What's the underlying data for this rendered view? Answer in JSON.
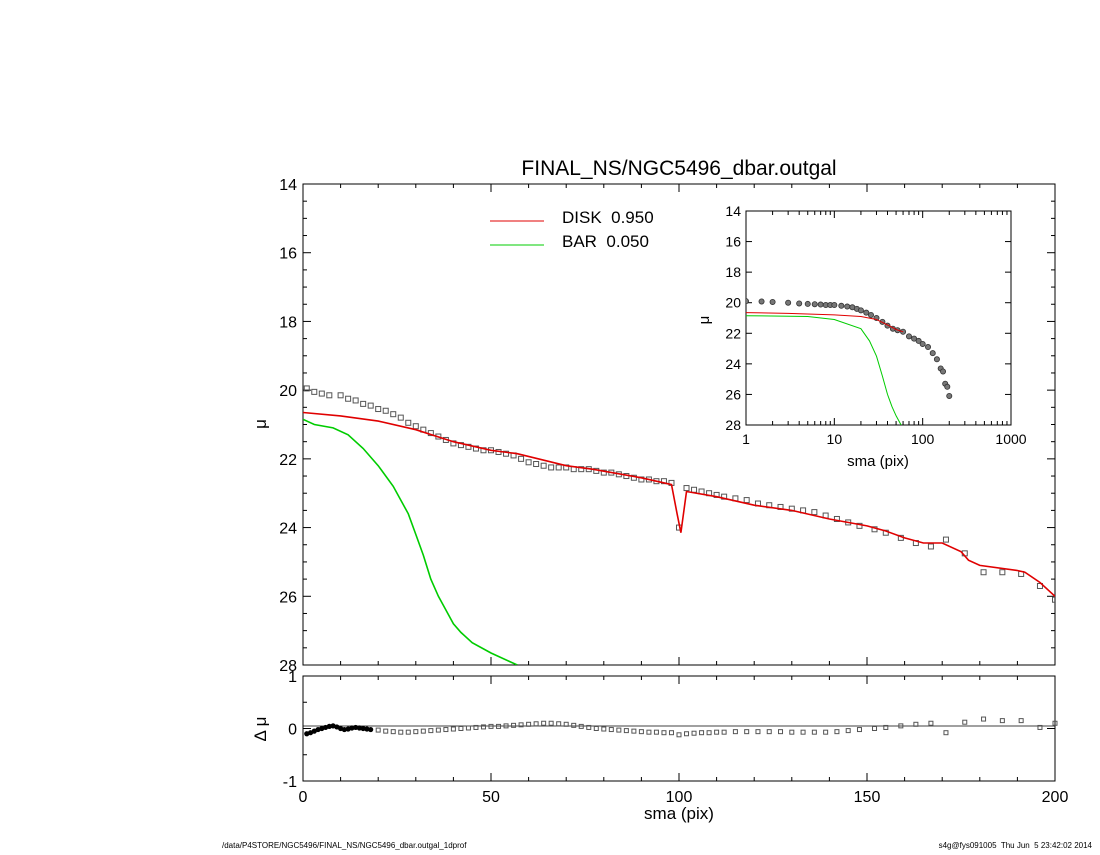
{
  "footer": {
    "left": "/data/P4STORE/NGC5496/FINAL_NS/NGC5496_dbar.outgal_1dprof",
    "right": "s4g@fys091005  Thu Jun  5 23:42:02 2014"
  },
  "colors": {
    "disk": "#e00000",
    "bar": "#00cc00",
    "data": "#555555",
    "axis": "#000000"
  },
  "chart_data": [
    {
      "id": "main",
      "type": "line",
      "title": "FINAL_NS/NGC5496_dbar.outgal",
      "xlabel": "",
      "ylabel": "μ",
      "xlim": [
        0,
        200
      ],
      "ylim": [
        28,
        14
      ],
      "yticks": [
        14,
        16,
        18,
        20,
        22,
        24,
        26,
        28
      ],
      "legend_position": "top-center",
      "series": [
        {
          "name": "DISK  0.950",
          "color": "#e00000",
          "x": [
            0,
            10,
            20,
            30,
            40,
            50,
            57,
            70,
            77,
            90,
            98,
            99.5,
            100.5,
            102,
            110,
            120,
            130,
            140,
            150,
            155,
            160,
            165,
            170,
            175,
            177,
            180,
            190,
            192,
            196,
            200
          ],
          "y": [
            20.65,
            20.75,
            20.9,
            21.15,
            21.5,
            21.75,
            21.85,
            22.2,
            22.3,
            22.55,
            22.75,
            23.6,
            24.15,
            22.95,
            23.1,
            23.35,
            23.5,
            23.75,
            23.95,
            24.1,
            24.3,
            24.45,
            24.45,
            24.7,
            24.95,
            25.1,
            25.25,
            25.3,
            25.6,
            26.0
          ]
        },
        {
          "name": "BAR  0.050",
          "color": "#00cc00",
          "x": [
            0,
            3,
            8,
            12,
            16,
            20,
            24,
            28,
            30,
            32,
            34,
            36,
            38,
            40,
            42,
            45,
            50,
            55,
            57
          ],
          "y": [
            20.85,
            21.0,
            21.1,
            21.3,
            21.7,
            22.2,
            22.8,
            23.6,
            24.2,
            24.8,
            25.5,
            26.0,
            26.4,
            26.8,
            27.05,
            27.35,
            27.65,
            27.9,
            28.0
          ]
        },
        {
          "name": "",
          "style": "squares",
          "color": "#555555",
          "x": [
            1,
            3,
            5,
            7,
            10,
            12,
            14,
            16,
            18,
            20,
            22,
            24,
            26,
            28,
            30,
            32,
            34,
            36,
            38,
            40,
            42,
            44,
            46,
            48,
            50,
            52,
            54,
            56,
            58,
            60,
            62,
            64,
            66,
            68,
            70,
            72,
            74,
            76,
            78,
            80,
            82,
            84,
            86,
            88,
            90,
            92,
            94,
            96,
            98,
            100,
            102,
            104,
            106,
            108,
            110,
            112,
            115,
            118,
            121,
            124,
            127,
            130,
            133,
            136,
            139,
            142,
            145,
            148,
            152,
            155,
            159,
            163,
            167,
            171,
            176,
            181,
            186,
            191,
            196,
            200
          ],
          "y": [
            19.95,
            20.05,
            20.1,
            20.15,
            20.15,
            20.25,
            20.3,
            20.4,
            20.45,
            20.55,
            20.6,
            20.7,
            20.8,
            20.95,
            21.05,
            21.15,
            21.25,
            21.35,
            21.45,
            21.55,
            21.6,
            21.65,
            21.7,
            21.75,
            21.75,
            21.8,
            21.85,
            21.9,
            22.0,
            22.1,
            22.15,
            22.2,
            22.25,
            22.25,
            22.25,
            22.3,
            22.3,
            22.3,
            22.35,
            22.4,
            22.4,
            22.45,
            22.5,
            22.55,
            22.6,
            22.6,
            22.65,
            22.65,
            22.7,
            24.0,
            22.85,
            22.9,
            22.95,
            23.0,
            23.05,
            23.1,
            23.15,
            23.2,
            23.3,
            23.35,
            23.4,
            23.45,
            23.5,
            23.55,
            23.65,
            23.75,
            23.85,
            23.95,
            24.05,
            24.15,
            24.3,
            24.45,
            24.55,
            24.35,
            24.75,
            25.3,
            25.3,
            25.35,
            25.7,
            26.1
          ]
        }
      ]
    },
    {
      "id": "residual",
      "type": "scatter",
      "xlabel": "sma (pix)",
      "ylabel": "Δ μ",
      "xlim": [
        0,
        200
      ],
      "ylim": [
        -1,
        1
      ],
      "xticks": [
        0,
        50,
        100,
        150,
        200
      ],
      "yticks": [
        -1,
        0,
        1
      ],
      "series": [
        {
          "name": "",
          "color": "#555555",
          "x": [
            1,
            2,
            3,
            4,
            5,
            6,
            7,
            8,
            9,
            10,
            11,
            12,
            13,
            14,
            15,
            16,
            17,
            18,
            20,
            22,
            24,
            26,
            28,
            30,
            32,
            34,
            36,
            38,
            40,
            42,
            44,
            46,
            48,
            50,
            52,
            54,
            56,
            58,
            60,
            62,
            64,
            66,
            68,
            70,
            72,
            74,
            76,
            78,
            80,
            82,
            84,
            86,
            88,
            90,
            92,
            94,
            96,
            98,
            100,
            102,
            104,
            106,
            108,
            110,
            112,
            115,
            118,
            121,
            124,
            127,
            130,
            133,
            136,
            139,
            142,
            145,
            148,
            152,
            155,
            159,
            163,
            167,
            171,
            176,
            181,
            186,
            191,
            196,
            200
          ],
          "y": [
            -0.1,
            -0.08,
            -0.05,
            -0.02,
            0.0,
            0.02,
            0.04,
            0.05,
            0.03,
            0.0,
            -0.02,
            -0.01,
            0.01,
            0.02,
            0.01,
            0.0,
            -0.01,
            -0.02,
            -0.03,
            -0.05,
            -0.06,
            -0.07,
            -0.07,
            -0.06,
            -0.05,
            -0.04,
            -0.03,
            -0.02,
            -0.01,
            0.0,
            0.01,
            0.02,
            0.03,
            0.04,
            0.04,
            0.05,
            0.06,
            0.07,
            0.08,
            0.09,
            0.1,
            0.1,
            0.09,
            0.08,
            0.06,
            0.04,
            0.02,
            0.0,
            -0.01,
            -0.02,
            -0.03,
            -0.04,
            -0.05,
            -0.06,
            -0.07,
            -0.07,
            -0.08,
            -0.08,
            -0.12,
            -0.1,
            -0.09,
            -0.08,
            -0.08,
            -0.07,
            -0.07,
            -0.06,
            -0.06,
            -0.06,
            -0.06,
            -0.06,
            -0.07,
            -0.07,
            -0.07,
            -0.07,
            -0.06,
            -0.04,
            -0.02,
            0.0,
            0.02,
            0.05,
            0.08,
            0.1,
            -0.08,
            0.12,
            0.18,
            0.15,
            0.15,
            0.02,
            0.1
          ]
        }
      ]
    },
    {
      "id": "inset",
      "type": "line",
      "xscale": "log",
      "xlabel": "sma (pix)",
      "ylabel": "μ",
      "xlim": [
        1,
        1000
      ],
      "ylim": [
        28,
        14
      ],
      "xticks": [
        1,
        10,
        100,
        1000
      ],
      "yticks": [
        14,
        16,
        18,
        20,
        22,
        24,
        26,
        28
      ],
      "series": [
        {
          "name": "",
          "color": "#e00000",
          "x": [
            1,
            3,
            10,
            20,
            30,
            40,
            50,
            60
          ],
          "y": [
            20.65,
            20.7,
            20.8,
            20.9,
            21.1,
            21.45,
            21.75,
            21.9
          ]
        },
        {
          "name": "",
          "color": "#00cc00",
          "x": [
            1,
            5,
            10,
            20,
            25,
            30,
            35,
            40,
            45,
            50,
            57
          ],
          "y": [
            20.85,
            20.9,
            21.1,
            21.7,
            22.5,
            23.5,
            24.8,
            26.0,
            26.8,
            27.4,
            28.0
          ]
        },
        {
          "name": "",
          "style": "circles",
          "color": "#555555",
          "x": [
            1,
            1.5,
            2,
            3,
            4,
            5,
            6,
            7,
            8,
            9,
            10,
            12,
            14,
            16,
            18,
            20,
            23,
            26,
            30,
            35,
            40,
            46,
            52,
            60,
            70,
            80,
            90,
            100,
            115,
            130,
            145,
            160,
            170,
            180,
            190,
            200
          ],
          "y": [
            19.9,
            19.92,
            19.95,
            20.0,
            20.05,
            20.08,
            20.1,
            20.12,
            20.15,
            20.15,
            20.15,
            20.2,
            20.25,
            20.3,
            20.4,
            20.5,
            20.65,
            20.8,
            21.0,
            21.25,
            21.5,
            21.7,
            21.8,
            21.9,
            22.2,
            22.35,
            22.5,
            22.7,
            22.9,
            23.3,
            23.7,
            24.3,
            24.5,
            25.3,
            25.5,
            26.1
          ]
        }
      ]
    }
  ]
}
